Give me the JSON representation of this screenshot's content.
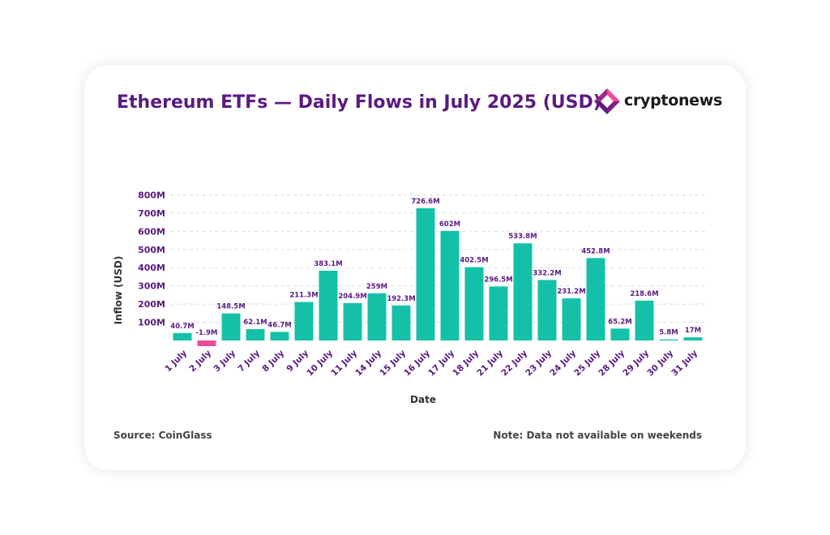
{
  "title": "Ethereum ETFs — Daily Flows in July 2025 (USD)",
  "brand": {
    "name": "cryptonews",
    "icon": "cryptonews-logo-icon"
  },
  "footer": {
    "source": "Source: CoinGlass",
    "note": "Note: Data not available on weekends"
  },
  "colors": {
    "title": "#5a1a82",
    "positive": "#14c1a8",
    "negative": "#ec4c98",
    "tick_label": "#5a1a82",
    "grid": "#dddddd"
  },
  "chart_data": {
    "type": "bar",
    "xlabel": "Date",
    "ylabel": "Inflow (USD)",
    "ylim": [
      -30,
      800
    ],
    "y_ticks": [
      100,
      200,
      300,
      400,
      500,
      600,
      700,
      800
    ],
    "y_tick_labels": [
      "100M",
      "200M",
      "300M",
      "400M",
      "500M",
      "600M",
      "700M",
      "800M"
    ],
    "grid": true,
    "categories": [
      "1 July",
      "2 July",
      "3 July",
      "7 July",
      "8 July",
      "9 July",
      "10 July",
      "11 July",
      "14 July",
      "15 July",
      "16 July",
      "17 July",
      "18 July",
      "21 July",
      "22 July",
      "23 July",
      "24 July",
      "25 July",
      "28 July",
      "29 July",
      "30 July",
      "31 July"
    ],
    "values": [
      40.7,
      -1.9,
      148.5,
      62.1,
      46.7,
      211.3,
      383.1,
      204.9,
      259,
      192.3,
      726.6,
      602,
      402.5,
      296.5,
      533.8,
      332.2,
      231.2,
      452.8,
      65.2,
      218.6,
      5.8,
      17
    ],
    "value_labels": [
      "40.7M",
      "-1.9M",
      "148.5M",
      "62.1M",
      "46.7M",
      "211.3M",
      "383.1M",
      "204.9M",
      "259M",
      "192.3M",
      "726.6M",
      "602M",
      "402.5M",
      "296.5M",
      "533.8M",
      "332.2M",
      "231.2M",
      "452.8M",
      "65.2M",
      "218.6M",
      "5.8M",
      "17M"
    ]
  }
}
